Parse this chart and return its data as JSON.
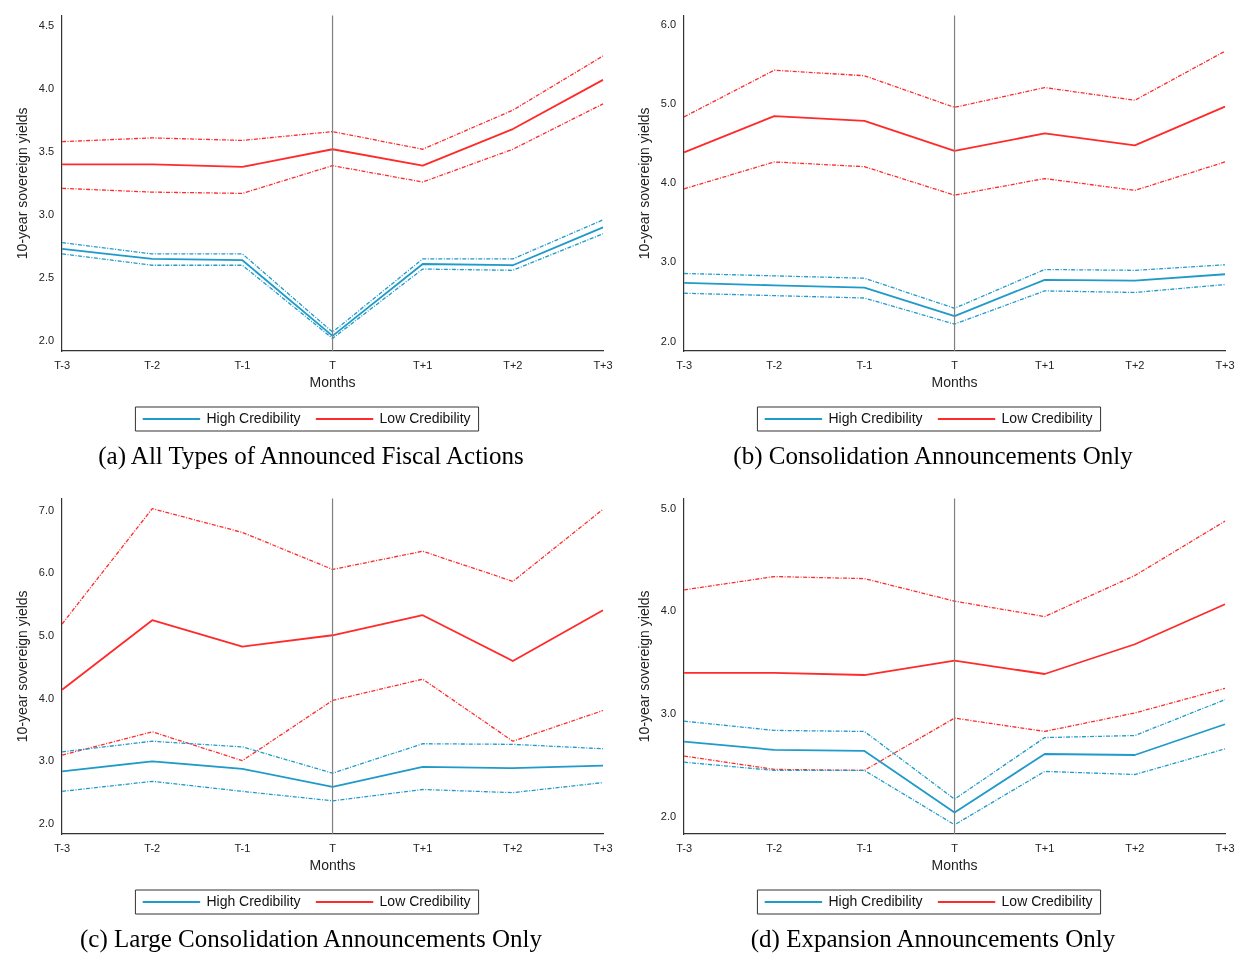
{
  "chart_data": [
    {
      "type": "line",
      "title": "(a) All Types of Announced Fiscal Actions",
      "xlabel": "Months",
      "ylabel": "10-year sovereign yields",
      "categories": [
        "T-3",
        "T-2",
        "T-1",
        "T",
        "T+1",
        "T+2",
        "T+3"
      ],
      "ylim": [
        1.92,
        4.58
      ],
      "yticks": [
        {
          "value": 2,
          "label": "2.0"
        },
        {
          "value": 2.5,
          "label": "2.5"
        },
        {
          "value": 3,
          "label": "3.0"
        },
        {
          "value": 3.5,
          "label": "3.5"
        },
        {
          "value": 4,
          "label": "4.0"
        },
        {
          "value": 4.5,
          "label": "4.5"
        }
      ],
      "grid": false,
      "legend": "bottom",
      "marker": "none",
      "line_style": "solid",
      "ref_lines": [
        {
          "axis": "x",
          "value": "T",
          "color": "#808080"
        }
      ],
      "series": [
        {
          "name": "High Credibility",
          "color": "#1f9ac9",
          "values": [
            2.73,
            2.65,
            2.64,
            2.04,
            2.61,
            2.6,
            2.9
          ]
        },
        {
          "color": "#1f9ac9",
          "line_style": "dashed",
          "values": [
            2.78,
            2.69,
            2.69,
            2.07,
            2.65,
            2.65,
            2.96
          ]
        },
        {
          "color": "#1f9ac9",
          "line_style": "dashed",
          "values": [
            2.69,
            2.6,
            2.6,
            2.02,
            2.57,
            2.56,
            2.85
          ]
        },
        {
          "name": "Low Credibility",
          "color": "#ff2a2a",
          "values": [
            3.4,
            3.4,
            3.38,
            3.52,
            3.39,
            3.68,
            4.07
          ]
        },
        {
          "color": "#ff2a2a",
          "line_style": "dashed",
          "values": [
            3.58,
            3.61,
            3.59,
            3.66,
            3.52,
            3.83,
            4.26
          ]
        },
        {
          "color": "#ff2a2a",
          "line_style": "dashed",
          "values": [
            3.21,
            3.18,
            3.17,
            3.39,
            3.26,
            3.52,
            3.88
          ]
        }
      ]
    },
    {
      "type": "line",
      "title": "(b) Consolidation Announcements Only",
      "xlabel": "Months",
      "ylabel": "10-year sovereign yields",
      "categories": [
        "T-3",
        "T-2",
        "T-1",
        "T",
        "T+1",
        "T+2",
        "T+3"
      ],
      "ylim": [
        1.88,
        6.12
      ],
      "yticks": [
        {
          "value": 2,
          "label": "2.0"
        },
        {
          "value": 3,
          "label": "3.0"
        },
        {
          "value": 4,
          "label": "4.0"
        },
        {
          "value": 5,
          "label": "5.0"
        },
        {
          "value": 6,
          "label": "6.0"
        }
      ],
      "grid": false,
      "legend": "bottom",
      "marker": "none",
      "line_style": "solid",
      "ref_lines": [
        {
          "axis": "x",
          "value": "T",
          "color": "#808080"
        }
      ],
      "series": [
        {
          "name": "High Credibility",
          "color": "#1f9ac9",
          "values": [
            2.74,
            2.71,
            2.68,
            2.32,
            2.78,
            2.77,
            2.85
          ]
        },
        {
          "color": "#1f9ac9",
          "line_style": "dashed",
          "values": [
            2.86,
            2.83,
            2.8,
            2.42,
            2.91,
            2.9,
            2.97
          ]
        },
        {
          "color": "#1f9ac9",
          "line_style": "dashed",
          "values": [
            2.61,
            2.58,
            2.55,
            2.22,
            2.64,
            2.62,
            2.72
          ]
        },
        {
          "name": "Low Credibility",
          "color": "#ff2a2a",
          "values": [
            4.39,
            4.85,
            4.79,
            4.41,
            4.63,
            4.48,
            4.97
          ]
        },
        {
          "color": "#ff2a2a",
          "line_style": "dashed",
          "values": [
            4.84,
            5.43,
            5.36,
            4.96,
            5.21,
            5.05,
            5.67
          ]
        },
        {
          "color": "#ff2a2a",
          "line_style": "dashed",
          "values": [
            3.93,
            4.27,
            4.21,
            3.85,
            4.06,
            3.91,
            4.27
          ]
        }
      ]
    },
    {
      "type": "line",
      "title": "(c) Large Consolidation Announcements Only",
      "xlabel": "Months",
      "ylabel": "10-year sovereign yields",
      "categories": [
        "T-3",
        "T-2",
        "T-1",
        "T",
        "T+1",
        "T+2",
        "T+3"
      ],
      "ylim": [
        1.84,
        7.19
      ],
      "yticks": [
        {
          "value": 2,
          "label": "2.0"
        },
        {
          "value": 3,
          "label": "3.0"
        },
        {
          "value": 4,
          "label": "4.0"
        },
        {
          "value": 5,
          "label": "5.0"
        },
        {
          "value": 6,
          "label": "6.0"
        },
        {
          "value": 7,
          "label": "7.0"
        }
      ],
      "grid": false,
      "legend": "bottom",
      "marker": "none",
      "line_style": "solid",
      "ref_lines": [
        {
          "axis": "x",
          "value": "T",
          "color": "#808080"
        }
      ],
      "series": [
        {
          "name": "High Credibility",
          "color": "#1f9ac9",
          "values": [
            2.84,
            3.0,
            2.88,
            2.59,
            2.91,
            2.89,
            2.93
          ]
        },
        {
          "color": "#1f9ac9",
          "line_style": "dashed",
          "values": [
            3.15,
            3.32,
            3.23,
            2.81,
            3.28,
            3.27,
            3.2
          ]
        },
        {
          "color": "#1f9ac9",
          "line_style": "dashed",
          "values": [
            2.52,
            2.68,
            2.52,
            2.37,
            2.55,
            2.5,
            2.66
          ]
        },
        {
          "name": "Low Credibility",
          "color": "#ff2a2a",
          "values": [
            4.14,
            5.25,
            4.83,
            5.01,
            5.33,
            4.6,
            5.41
          ]
        },
        {
          "color": "#ff2a2a",
          "line_style": "dashed",
          "values": [
            5.19,
            7.03,
            6.65,
            6.06,
            6.35,
            5.87,
            7.02
          ]
        },
        {
          "color": "#ff2a2a",
          "line_style": "dashed",
          "values": [
            3.1,
            3.47,
            3.01,
            3.97,
            4.31,
            3.32,
            3.81
          ]
        }
      ]
    },
    {
      "type": "line",
      "title": "(d) Expansion Announcements Only",
      "xlabel": "Months",
      "ylabel": "10-year sovereign yields",
      "categories": [
        "T-3",
        "T-2",
        "T-1",
        "T",
        "T+1",
        "T+2",
        "T+3"
      ],
      "ylim": [
        1.83,
        5.1
      ],
      "yticks": [
        {
          "value": 2,
          "label": "2.0"
        },
        {
          "value": 3,
          "label": "3.0"
        },
        {
          "value": 4,
          "label": "4.0"
        },
        {
          "value": 5,
          "label": "5.0"
        }
      ],
      "grid": false,
      "legend": "bottom",
      "marker": "none",
      "line_style": "solid",
      "ref_lines": [
        {
          "axis": "x",
          "value": "T",
          "color": "#808080"
        }
      ],
      "series": [
        {
          "name": "High Credibility",
          "color": "#1f9ac9",
          "values": [
            2.73,
            2.65,
            2.64,
            2.04,
            2.61,
            2.6,
            2.9
          ]
        },
        {
          "color": "#1f9ac9",
          "line_style": "dashed",
          "values": [
            2.93,
            2.84,
            2.83,
            2.17,
            2.77,
            2.79,
            3.14
          ]
        },
        {
          "color": "#1f9ac9",
          "line_style": "dashed",
          "values": [
            2.53,
            2.45,
            2.45,
            1.92,
            2.44,
            2.41,
            2.66
          ]
        },
        {
          "name": "Low Credibility",
          "color": "#ff2a2a",
          "values": [
            3.4,
            3.4,
            3.38,
            3.52,
            3.39,
            3.68,
            4.07
          ]
        },
        {
          "color": "#ff2a2a",
          "line_style": "dashed",
          "values": [
            4.21,
            4.34,
            4.32,
            4.1,
            3.95,
            4.35,
            4.88
          ]
        },
        {
          "color": "#ff2a2a",
          "line_style": "dashed",
          "values": [
            2.59,
            2.46,
            2.45,
            2.96,
            2.83,
            3.01,
            3.25
          ]
        }
      ]
    }
  ]
}
